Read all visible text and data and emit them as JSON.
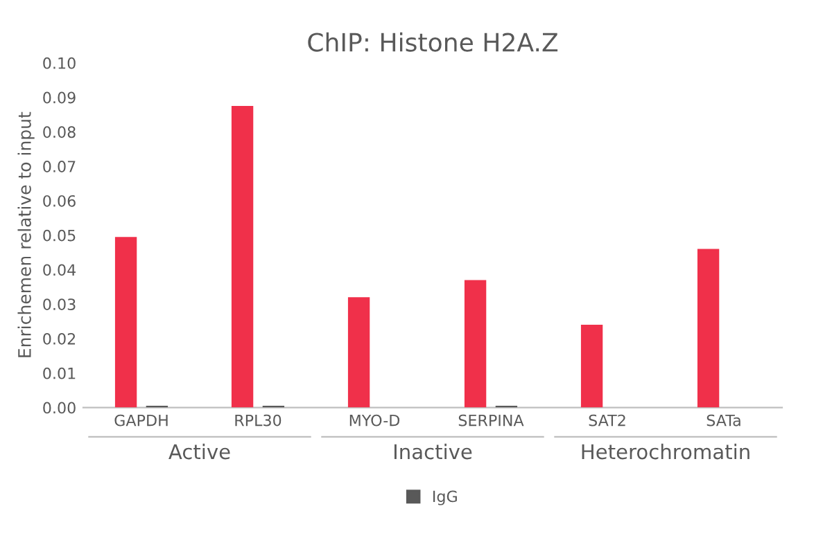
{
  "chart_data": {
    "type": "bar",
    "title": "ChIP: Histone H2A.Z",
    "ylabel": "Enrichemen relative to input",
    "categories": [
      "GAPDH",
      "RPL30",
      "MYO-D",
      "SERPINA",
      "SAT2",
      "SATa"
    ],
    "series": [
      {
        "color": "#f0304a",
        "values": [
          0.0495,
          0.0875,
          0.032,
          0.037,
          0.024,
          0.046
        ]
      },
      {
        "name": "IgG",
        "color": "#595959",
        "values": [
          0.0005,
          0.0005,
          0.0,
          0.0005,
          0.0,
          0.0
        ]
      }
    ],
    "annotations": [
      "Active",
      "Inactive",
      "Heterochromatin"
    ],
    "ylim": [
      0,
      0.1
    ],
    "yticks": [
      {
        "value": 0,
        "label": "0.00"
      },
      {
        "value": 0.01,
        "label": "0.01"
      },
      {
        "value": 0.02,
        "label": "0.02"
      },
      {
        "value": 0.03,
        "label": "0.03"
      },
      {
        "value": 0.04,
        "label": "0.04"
      },
      {
        "value": 0.05,
        "label": "0.05"
      },
      {
        "value": 0.06,
        "label": "0.06"
      },
      {
        "value": 0.07,
        "label": "0.07"
      },
      {
        "value": 0.08,
        "label": "0.08"
      },
      {
        "value": 0.09,
        "label": "0.09"
      },
      {
        "value": 0.1,
        "label": "0.10"
      }
    ],
    "grid": false,
    "legend": "bottom"
  }
}
